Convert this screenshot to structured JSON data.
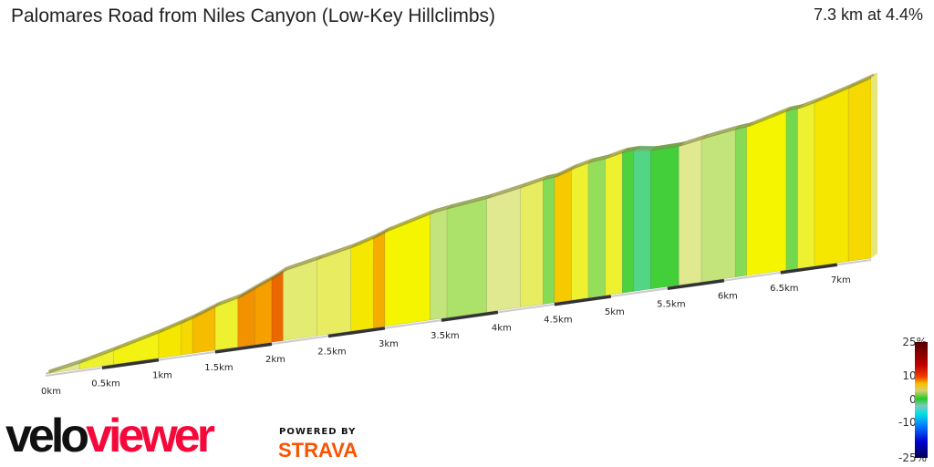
{
  "header": {
    "title": "Palomares Road from Niles Canyon (Low-Key Hillclimbs)",
    "summary": "7.3 km at 4.4%"
  },
  "legend": {
    "labels": [
      "25%",
      "10%",
      "0%",
      "-10%",
      "-25%"
    ]
  },
  "branding": {
    "logo_velo": "velo",
    "logo_viewer": "viewer",
    "powered_by": "POWERED BY",
    "strava": "STRAVA"
  },
  "chart_data": {
    "type": "area",
    "title": "Palomares Road from Niles Canyon (Low-Key Hillclimbs)",
    "distance_km": 7.3,
    "avg_gradient_pct": 4.4,
    "x_tick_labels": [
      "0km",
      "0.5km",
      "1km",
      "1.5km",
      "2km",
      "2.5km",
      "3km",
      "3.5km",
      "4km",
      "4.5km",
      "5km",
      "5.5km",
      "6km",
      "6.5km",
      "7km"
    ],
    "gradient_scale": {
      "min": -25,
      "max": 25,
      "labels": [
        "25%",
        "10%",
        "0%",
        "-10%",
        "-25%"
      ]
    },
    "segments": [
      {
        "start_km": 0.0,
        "end_km": 0.3,
        "gradient_pct": 3.5
      },
      {
        "start_km": 0.3,
        "end_km": 0.6,
        "gradient_pct": 4.5
      },
      {
        "start_km": 0.6,
        "end_km": 1.0,
        "gradient_pct": 4.8
      },
      {
        "start_km": 1.0,
        "end_km": 1.2,
        "gradient_pct": 5.5
      },
      {
        "start_km": 1.2,
        "end_km": 1.3,
        "gradient_pct": 6
      },
      {
        "start_km": 1.3,
        "end_km": 1.5,
        "gradient_pct": 7
      },
      {
        "start_km": 1.5,
        "end_km": 1.7,
        "gradient_pct": 4.5
      },
      {
        "start_km": 1.7,
        "end_km": 1.85,
        "gradient_pct": 8.5
      },
      {
        "start_km": 1.85,
        "end_km": 2.0,
        "gradient_pct": 8
      },
      {
        "start_km": 2.0,
        "end_km": 2.1,
        "gradient_pct": 10
      },
      {
        "start_km": 2.1,
        "end_km": 2.4,
        "gradient_pct": 3.8
      },
      {
        "start_km": 2.4,
        "end_km": 2.7,
        "gradient_pct": 4
      },
      {
        "start_km": 2.7,
        "end_km": 2.9,
        "gradient_pct": 5.5
      },
      {
        "start_km": 2.9,
        "end_km": 3.0,
        "gradient_pct": 7.5
      },
      {
        "start_km": 3.0,
        "end_km": 3.4,
        "gradient_pct": 5
      },
      {
        "start_km": 3.4,
        "end_km": 3.55,
        "gradient_pct": 2.8
      },
      {
        "start_km": 3.55,
        "end_km": 3.9,
        "gradient_pct": 2.3
      },
      {
        "start_km": 3.9,
        "end_km": 4.2,
        "gradient_pct": 3.5
      },
      {
        "start_km": 4.2,
        "end_km": 4.4,
        "gradient_pct": 4
      },
      {
        "start_km": 4.4,
        "end_km": 4.5,
        "gradient_pct": 1.5
      },
      {
        "start_km": 4.5,
        "end_km": 4.65,
        "gradient_pct": 6.5
      },
      {
        "start_km": 4.65,
        "end_km": 4.8,
        "gradient_pct": 4.5
      },
      {
        "start_km": 4.8,
        "end_km": 4.95,
        "gradient_pct": 1.8
      },
      {
        "start_km": 4.95,
        "end_km": 5.1,
        "gradient_pct": 4.5
      },
      {
        "start_km": 5.1,
        "end_km": 5.2,
        "gradient_pct": 0.5
      },
      {
        "start_km": 5.2,
        "end_km": 5.35,
        "gradient_pct": -3
      },
      {
        "start_km": 5.35,
        "end_km": 5.6,
        "gradient_pct": 0.3
      },
      {
        "start_km": 5.6,
        "end_km": 5.8,
        "gradient_pct": 3.5
      },
      {
        "start_km": 5.8,
        "end_km": 6.1,
        "gradient_pct": 2.8
      },
      {
        "start_km": 6.1,
        "end_km": 6.2,
        "gradient_pct": 1.5
      },
      {
        "start_km": 6.2,
        "end_km": 6.55,
        "gradient_pct": 5
      },
      {
        "start_km": 6.55,
        "end_km": 6.65,
        "gradient_pct": 1.2
      },
      {
        "start_km": 6.65,
        "end_km": 6.8,
        "gradient_pct": 4.5
      },
      {
        "start_km": 6.8,
        "end_km": 7.1,
        "gradient_pct": 5.5
      },
      {
        "start_km": 7.1,
        "end_km": 7.3,
        "gradient_pct": 6
      }
    ]
  }
}
